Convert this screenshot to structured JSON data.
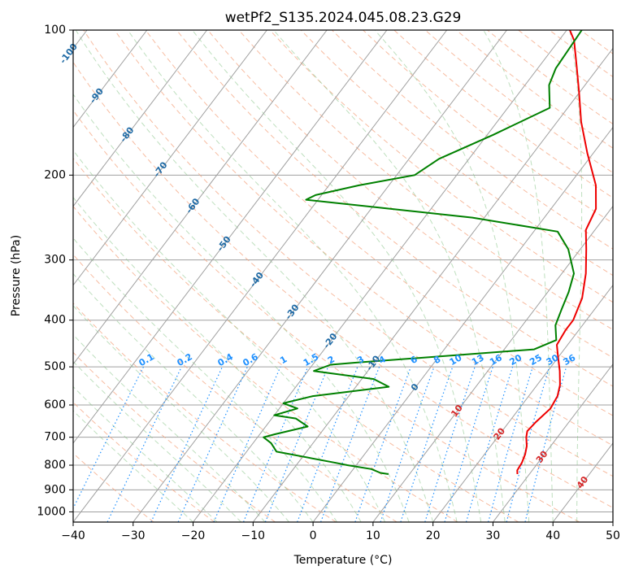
{
  "chart_data": {
    "type": "line",
    "subtype": "skew-T log-P diagram",
    "title": "wetPf2_S135.2024.045.08.23.G29",
    "xlabel": "Temperature (°C)",
    "ylabel": "Pressure (hPa)",
    "xlim": [
      -40,
      50
    ],
    "ylim": [
      1050,
      100
    ],
    "y_scale": "log",
    "grid": true,
    "x_ticks": [
      -40,
      -30,
      -20,
      -10,
      0,
      10,
      20,
      30,
      40,
      50
    ],
    "y_ticks": [
      100,
      200,
      300,
      400,
      500,
      600,
      700,
      800,
      900,
      1000
    ],
    "isotherm_labels": [
      "-100",
      "-90",
      "-80",
      "-70",
      "-60",
      "-50",
      "-40",
      "-30",
      "-20",
      "-10",
      "0",
      "10",
      "20",
      "30",
      "40"
    ],
    "mixing_ratio_labels": [
      "0.1",
      "0.2",
      "0.4",
      "0.6",
      "1",
      "1.5",
      "2",
      "3",
      "4",
      "6",
      "8",
      "10",
      "13",
      "16",
      "20",
      "25",
      "30",
      "36"
    ],
    "colors": {
      "temperature": "#ee0000",
      "dewpoint": "#008000",
      "isotherm_label": "#1f6aa5",
      "isotherm_label_warm": "#d62728",
      "mixing_ratio": "#1e90ff",
      "dry_adiabat": "#f4a582",
      "moist_adiabat": "#88c488",
      "grid": "#a0a0a0"
    },
    "series": [
      {
        "key": "temperature",
        "points": [
          [
            28.0,
            835
          ],
          [
            27.5,
            820
          ],
          [
            27.3,
            790
          ],
          [
            26.8,
            760
          ],
          [
            26.0,
            730
          ],
          [
            24.8,
            700
          ],
          [
            24.2,
            680
          ],
          [
            24.5,
            650
          ],
          [
            25.2,
            610
          ],
          [
            24.8,
            575
          ],
          [
            23.8,
            545
          ],
          [
            22.0,
            510
          ],
          [
            19.5,
            470
          ],
          [
            18.2,
            450
          ],
          [
            17.8,
            420
          ],
          [
            17.8,
            400
          ],
          [
            16.5,
            360
          ],
          [
            14.0,
            320
          ],
          [
            11.0,
            285
          ],
          [
            8.5,
            260
          ],
          [
            7.5,
            235
          ],
          [
            4.5,
            210
          ],
          [
            -1.0,
            180
          ],
          [
            -6.0,
            155
          ],
          [
            -10.0,
            135
          ],
          [
            -14.0,
            118
          ],
          [
            -17.5,
            105
          ],
          [
            -19.5,
            100
          ]
        ]
      },
      {
        "key": "dewpoint",
        "points": [
          [
            6.5,
            835
          ],
          [
            5.0,
            830
          ],
          [
            3.0,
            815
          ],
          [
            -1.5,
            800
          ],
          [
            -4.0,
            790
          ],
          [
            -15.0,
            750
          ],
          [
            -17.0,
            720
          ],
          [
            -19.0,
            700
          ],
          [
            -17.5,
            690
          ],
          [
            -13.0,
            665
          ],
          [
            -16.0,
            640
          ],
          [
            -20.0,
            630
          ],
          [
            -17.0,
            610
          ],
          [
            -20.0,
            595
          ],
          [
            -16.0,
            575
          ],
          [
            -4.5,
            550
          ],
          [
            -8.0,
            530
          ],
          [
            -19.0,
            510
          ],
          [
            -17.0,
            495
          ],
          [
            -13.0,
            490
          ],
          [
            15.0,
            460
          ],
          [
            17.5,
            440
          ],
          [
            15.5,
            410
          ],
          [
            14.5,
            380
          ],
          [
            13.5,
            350
          ],
          [
            12.0,
            320
          ],
          [
            8.0,
            285
          ],
          [
            4.0,
            262
          ],
          [
            -12.0,
            245
          ],
          [
            -42.0,
            225
          ],
          [
            -41.0,
            220
          ],
          [
            -35.0,
            210
          ],
          [
            -27.0,
            200
          ],
          [
            -25.0,
            185
          ],
          [
            -19.0,
            165
          ],
          [
            -13.0,
            145
          ],
          [
            -16.0,
            130
          ],
          [
            -17.0,
            120
          ],
          [
            -17.5,
            100
          ]
        ]
      }
    ]
  }
}
